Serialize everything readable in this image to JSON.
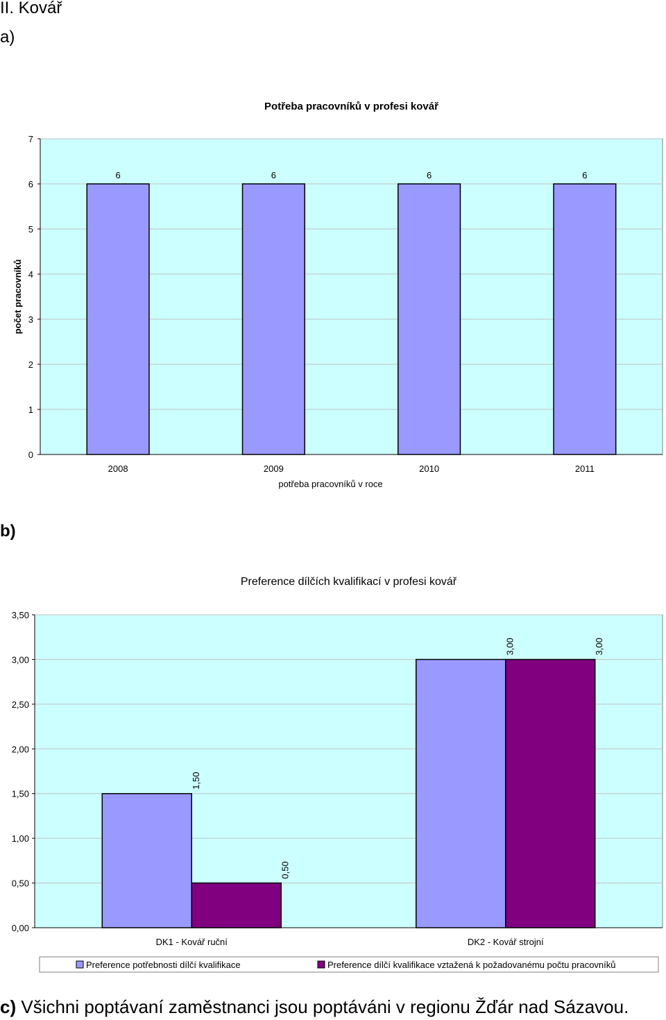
{
  "page": {
    "heading": "II. Kovář",
    "label_a": "a)",
    "label_b": "b)",
    "note_c_prefix": "c)",
    "note_c_text": " Všichni poptávaní zaměstnanci jsou poptáváni v regionu Žďár nad Sázavou."
  },
  "chart_data": [
    {
      "type": "bar",
      "title": "Potřeba pracovníků v profesi kovář",
      "xlabel": "potřeba pracovníků v roce",
      "ylabel": "počet pracovníků",
      "categories": [
        "2008",
        "2009",
        "2010",
        "2011"
      ],
      "series": [
        {
          "values": [
            6,
            6,
            6,
            6
          ],
          "labels": [
            "6",
            "6",
            "6",
            "6"
          ]
        }
      ],
      "ylim": [
        0,
        7
      ],
      "yticks": [
        0,
        1,
        2,
        3,
        4,
        5,
        6,
        7
      ],
      "ytick_labels": [
        "0",
        "1",
        "2",
        "3",
        "4",
        "5",
        "6",
        "7"
      ],
      "grid": true,
      "legend": "none",
      "colors": {
        "plot_bg": "#ccffff",
        "bar": "#9999ff",
        "grid": "#c0c0c0"
      }
    },
    {
      "type": "bar",
      "title": "Preference dílčích kvalifikací v profesi kovář",
      "xlabel": "",
      "ylabel": "",
      "categories": [
        "DK1 - Kovář ruční",
        "DK2 - Kovář strojní"
      ],
      "series": [
        {
          "name": "Preference potřebnosti dílčí kvalifikace",
          "values": [
            1.5,
            3.0
          ],
          "labels": [
            "1,50",
            "3,00"
          ],
          "color": "#9999ff"
        },
        {
          "name": "Preference dílčí kvalifikace vztažená k požadovanému počtu pracovníků",
          "values": [
            0.5,
            3.0
          ],
          "labels": [
            "0,50",
            "3,00"
          ],
          "color": "#800080"
        }
      ],
      "ylim": [
        0,
        3.5
      ],
      "yticks": [
        0,
        0.5,
        1,
        1.5,
        2,
        2.5,
        3,
        3.5
      ],
      "ytick_labels": [
        "0,00",
        "0,50",
        "1,00",
        "1,50",
        "2,00",
        "2,50",
        "3,00",
        "3,50"
      ],
      "grid": true,
      "legend": "bottom",
      "colors": {
        "plot_bg": "#ccffff",
        "grid": "#c0c0c0"
      }
    }
  ]
}
